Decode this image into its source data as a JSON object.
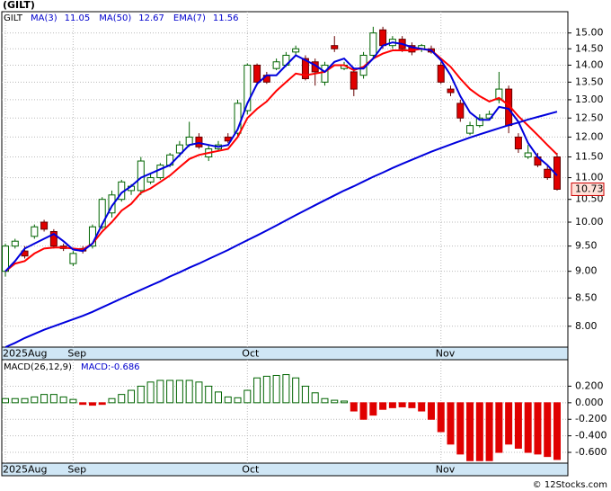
{
  "chart_data": [
    {
      "type": "candlestick",
      "title": "(GILT)",
      "ticker": "GILT",
      "categories": [
        "2025Aug",
        null,
        null,
        null,
        null,
        null,
        null,
        "Sep",
        null,
        null,
        null,
        null,
        null,
        null,
        null,
        null,
        null,
        null,
        null,
        null,
        null,
        null,
        null,
        null,
        null,
        "Oct",
        null,
        null,
        null,
        null,
        null,
        null,
        null,
        null,
        null,
        null,
        null,
        null,
        null,
        null,
        null,
        null,
        null,
        null,
        null,
        "Nov",
        null,
        null,
        null,
        null,
        null,
        null,
        null,
        null,
        null,
        null,
        null,
        null
      ],
      "open": [
        9.0,
        9.5,
        9.4,
        9.7,
        10.0,
        9.8,
        9.5,
        9.15,
        9.45,
        9.5,
        9.9,
        10.2,
        10.5,
        10.7,
        10.7,
        10.9,
        11.0,
        11.3,
        11.6,
        11.8,
        12.0,
        11.5,
        11.7,
        12.0,
        12.1,
        12.7,
        14.0,
        13.7,
        13.9,
        14.0,
        14.4,
        14.2,
        14.1,
        13.5,
        14.6,
        13.9,
        13.8,
        13.7,
        14.3,
        15.1,
        14.6,
        14.8,
        14.6,
        14.5,
        14.5,
        14.0,
        13.3,
        12.9,
        12.1,
        12.3,
        12.5,
        13.0,
        13.3,
        12.0,
        11.5,
        11.5,
        11.2,
        11.5
      ],
      "high": [
        9.55,
        9.65,
        9.5,
        9.95,
        10.05,
        9.85,
        9.55,
        9.4,
        9.5,
        9.95,
        10.55,
        10.7,
        10.95,
        10.85,
        11.5,
        11.1,
        11.35,
        11.6,
        11.9,
        12.4,
        12.1,
        11.8,
        11.9,
        12.1,
        13.0,
        14.05,
        14.05,
        13.8,
        14.2,
        14.4,
        14.6,
        14.3,
        14.2,
        14.1,
        14.9,
        14.1,
        13.9,
        14.4,
        15.2,
        15.2,
        14.9,
        14.9,
        14.7,
        14.65,
        14.6,
        14.1,
        13.4,
        13.0,
        12.4,
        12.6,
        12.7,
        13.8,
        13.4,
        12.1,
        11.8,
        11.6,
        11.3,
        11.6
      ],
      "low": [
        8.9,
        9.45,
        9.25,
        9.65,
        9.8,
        9.45,
        9.4,
        9.1,
        9.35,
        9.45,
        9.85,
        10.1,
        10.45,
        10.6,
        10.6,
        10.85,
        10.95,
        11.25,
        11.5,
        11.75,
        11.7,
        11.4,
        11.65,
        11.85,
        12.0,
        12.6,
        13.4,
        13.45,
        13.85,
        13.95,
        14.3,
        13.55,
        13.4,
        13.4,
        14.4,
        13.85,
        13.1,
        13.6,
        14.2,
        14.5,
        14.5,
        14.4,
        14.3,
        14.4,
        14.35,
        13.45,
        13.1,
        12.4,
        12.05,
        12.25,
        12.45,
        12.9,
        12.1,
        11.6,
        11.45,
        11.25,
        10.95,
        10.7
      ],
      "close": [
        9.5,
        9.6,
        9.3,
        9.9,
        9.85,
        9.5,
        9.45,
        9.35,
        9.4,
        9.9,
        10.5,
        10.6,
        10.9,
        10.8,
        11.4,
        11.0,
        11.3,
        11.55,
        11.8,
        12.0,
        11.75,
        11.7,
        11.8,
        11.9,
        12.9,
        14.0,
        13.5,
        13.5,
        14.1,
        14.3,
        14.5,
        13.6,
        13.8,
        14.0,
        14.5,
        14.0,
        13.3,
        14.3,
        15.0,
        14.6,
        14.8,
        14.5,
        14.4,
        14.6,
        14.4,
        13.5,
        13.2,
        12.5,
        12.3,
        12.5,
        12.6,
        13.3,
        12.3,
        11.7,
        11.6,
        11.3,
        11.0,
        10.73
      ],
      "up_color": "#006400",
      "down_color": "#e00000",
      "series": [
        {
          "name": "EMA(7)",
          "color": "#ff0000",
          "values": [
            9.0,
            9.15,
            9.2,
            9.35,
            9.45,
            9.47,
            9.47,
            9.45,
            9.43,
            9.55,
            9.8,
            10.0,
            10.25,
            10.4,
            10.65,
            10.75,
            10.9,
            11.05,
            11.25,
            11.45,
            11.55,
            11.6,
            11.65,
            11.7,
            12.0,
            12.5,
            12.75,
            12.95,
            13.25,
            13.5,
            13.75,
            13.7,
            13.75,
            13.8,
            14.0,
            14.0,
            13.85,
            13.95,
            14.2,
            14.35,
            14.45,
            14.45,
            14.45,
            14.5,
            14.45,
            14.2,
            13.95,
            13.6,
            13.3,
            13.1,
            12.95,
            13.05,
            12.85,
            12.55,
            12.3,
            12.05,
            11.8,
            11.56
          ]
        },
        {
          "name": "MA(50)",
          "color": "#0000dd",
          "values": [
            7.65,
            7.72,
            7.8,
            7.87,
            7.94,
            8.0,
            8.06,
            8.12,
            8.18,
            8.25,
            8.33,
            8.41,
            8.49,
            8.57,
            8.65,
            8.73,
            8.81,
            8.9,
            8.98,
            9.07,
            9.15,
            9.24,
            9.33,
            9.42,
            9.52,
            9.62,
            9.72,
            9.82,
            9.93,
            10.04,
            10.15,
            10.26,
            10.37,
            10.48,
            10.59,
            10.7,
            10.8,
            10.91,
            11.02,
            11.12,
            11.23,
            11.33,
            11.43,
            11.53,
            11.63,
            11.72,
            11.81,
            11.9,
            11.99,
            12.07,
            12.15,
            12.23,
            12.31,
            12.38,
            12.46,
            12.53,
            12.6,
            12.67
          ]
        },
        {
          "name": "MA(3)",
          "color": "#0000dd",
          "values": [
            9.0,
            9.2,
            9.45,
            9.55,
            9.65,
            9.75,
            9.6,
            9.43,
            9.4,
            9.55,
            9.95,
            10.35,
            10.65,
            10.8,
            11.0,
            11.1,
            11.2,
            11.3,
            11.55,
            11.8,
            11.85,
            11.8,
            11.75,
            11.8,
            12.2,
            12.9,
            13.45,
            13.7,
            13.7,
            14.0,
            14.3,
            14.15,
            14.0,
            13.8,
            14.1,
            14.2,
            13.9,
            13.9,
            14.2,
            14.6,
            14.7,
            14.65,
            14.55,
            14.5,
            14.45,
            14.15,
            13.7,
            13.1,
            12.65,
            12.45,
            12.45,
            12.8,
            12.75,
            12.4,
            11.85,
            11.5,
            11.3,
            11.05
          ]
        }
      ],
      "legend_order": [
        2,
        1,
        0
      ],
      "log_scale": true,
      "grid": true,
      "ylim": [
        7.65,
        15.7
      ],
      "yticks": [
        {
          "value": 8.0,
          "label": "8.00"
        },
        {
          "value": 8.5,
          "label": "8.50"
        },
        {
          "value": 9.0,
          "label": "9.00"
        },
        {
          "value": 9.5,
          "label": "9.50"
        },
        {
          "value": 10.0,
          "label": "10.00"
        },
        {
          "value": 10.5,
          "label": "10.50"
        },
        {
          "value": 11.0,
          "label": "11.00"
        },
        {
          "value": 11.5,
          "label": "11.50"
        },
        {
          "value": 12.0,
          "label": "12.00"
        },
        {
          "value": 12.5,
          "label": "12.50"
        },
        {
          "value": 13.0,
          "label": "13.00"
        },
        {
          "value": 13.5,
          "label": "13.50"
        },
        {
          "value": 14.0,
          "label": "14.00"
        },
        {
          "value": 14.5,
          "label": "14.50"
        },
        {
          "value": 15.0,
          "label": "15.00"
        }
      ]
    },
    {
      "type": "bar",
      "name": "MACD(26,12,9)",
      "value_name": "MACD:",
      "values": [
        0.05,
        0.05,
        0.05,
        0.07,
        0.1,
        0.1,
        0.07,
        0.04,
        -0.02,
        -0.03,
        -0.02,
        0.05,
        0.1,
        0.15,
        0.2,
        0.25,
        0.27,
        0.27,
        0.27,
        0.27,
        0.25,
        0.2,
        0.13,
        0.07,
        0.06,
        0.15,
        0.3,
        0.32,
        0.33,
        0.34,
        0.3,
        0.2,
        0.12,
        0.05,
        0.03,
        0.02,
        -0.1,
        -0.2,
        -0.15,
        -0.08,
        -0.06,
        -0.05,
        -0.06,
        -0.1,
        -0.2,
        -0.35,
        -0.5,
        -0.62,
        -0.7,
        -0.7,
        -0.7,
        -0.6,
        -0.5,
        -0.55,
        -0.6,
        -0.62,
        -0.65,
        -0.686
      ],
      "up_color": "#006400",
      "down_color": "#e00000",
      "ylim": [
        -0.73,
        0.52
      ],
      "yticks": [
        {
          "value": -0.6,
          "label": "-0.600"
        },
        {
          "value": -0.4,
          "label": "-0.400"
        },
        {
          "value": -0.2,
          "label": "-0.200"
        },
        {
          "value": 0,
          "label": "0.000"
        },
        {
          "value": 0.2,
          "label": "0.200"
        }
      ],
      "grid": true
    }
  ],
  "footer": "© 12Stocks.com"
}
